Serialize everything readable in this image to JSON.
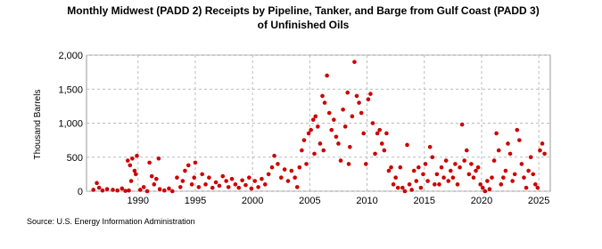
{
  "chart_data": {
    "type": "scatter",
    "title": [
      "Monthly Midwest (PADD 2) Receipts by Pipeline, Tanker, and Barge from Gulf Coast (PADD 3)",
      "of Unfinished Oils"
    ],
    "y_label": "Thousand Barrels",
    "source": "Source: U.S. Energy Information Administration",
    "color": "#cc0000",
    "grid": true,
    "xlim": [
      1985.5,
      2026
    ],
    "xticks": [
      1990,
      1995,
      2000,
      2005,
      2010,
      2015,
      2020,
      2025
    ],
    "ylim": [
      0,
      2000
    ],
    "yticks": [
      0,
      500,
      {
        "value": 1000,
        "label": "1,000"
      },
      {
        "value": 1500,
        "label": "1,500"
      },
      {
        "value": 2000,
        "label": "2,000"
      }
    ],
    "x": [
      1986.1,
      1986.4,
      1986.6,
      1986.9,
      1987.3,
      1987.8,
      1988.2,
      1988.6,
      1988.9,
      1989.1,
      1989.2,
      1989.3,
      1989.4,
      1989.5,
      1989.7,
      1989.8,
      1989.9,
      1990.2,
      1990.5,
      1990.8,
      1991.0,
      1991.2,
      1991.4,
      1991.6,
      1991.8,
      1991.9,
      1992.3,
      1992.7,
      1993.0,
      1993.4,
      1993.7,
      1993.9,
      1994.1,
      1994.4,
      1994.7,
      1994.9,
      1995.0,
      1995.3,
      1995.6,
      1995.9,
      1996.2,
      1996.5,
      1996.8,
      1997.1,
      1997.4,
      1997.7,
      1997.9,
      1998.2,
      1998.5,
      1998.8,
      1999.1,
      1999.4,
      1999.7,
      1999.9,
      2000.2,
      2000.5,
      2000.8,
      2001.1,
      2001.4,
      2001.7,
      2001.9,
      2002.2,
      2002.5,
      2002.8,
      2003.1,
      2003.4,
      2003.7,
      2003.9,
      2004.1,
      2004.3,
      2004.5,
      2004.7,
      2004.9,
      2005.1,
      2005.3,
      2005.4,
      2005.5,
      2005.7,
      2005.9,
      2006.1,
      2006.2,
      2006.3,
      2006.5,
      2006.7,
      2006.9,
      2007.1,
      2007.3,
      2007.5,
      2007.7,
      2007.9,
      2008.1,
      2008.3,
      2008.4,
      2008.5,
      2008.7,
      2008.9,
      2009.1,
      2009.3,
      2009.5,
      2009.7,
      2009.9,
      2010.1,
      2010.3,
      2010.5,
      2010.7,
      2010.9,
      2011.1,
      2011.3,
      2011.5,
      2011.7,
      2011.9,
      2012.1,
      2012.3,
      2012.5,
      2012.7,
      2012.9,
      2013.1,
      2013.3,
      2013.5,
      2013.7,
      2013.9,
      2014.1,
      2014.3,
      2014.5,
      2014.7,
      2014.9,
      2015.1,
      2015.3,
      2015.5,
      2015.7,
      2015.9,
      2016.1,
      2016.3,
      2016.5,
      2016.7,
      2016.9,
      2017.1,
      2017.3,
      2017.5,
      2017.7,
      2017.9,
      2018.1,
      2018.3,
      2018.5,
      2018.7,
      2018.9,
      2019.1,
      2019.3,
      2019.5,
      2019.7,
      2019.9,
      2020.1,
      2020.3,
      2020.5,
      2020.7,
      2020.9,
      2021.1,
      2021.3,
      2021.5,
      2021.7,
      2021.9,
      2022.1,
      2022.3,
      2022.5,
      2022.7,
      2022.9,
      2023.1,
      2023.3,
      2023.5,
      2023.7,
      2023.9,
      2024.1,
      2024.3,
      2024.5,
      2024.7,
      2024.9,
      2025.1,
      2025.3,
      2025.5
    ],
    "values": [
      20,
      120,
      50,
      10,
      30,
      20,
      10,
      40,
      5,
      450,
      10,
      380,
      150,
      480,
      300,
      250,
      520,
      20,
      60,
      0,
      420,
      220,
      100,
      180,
      480,
      30,
      10,
      40,
      0,
      200,
      60,
      150,
      300,
      380,
      100,
      200,
      420,
      60,
      250,
      100,
      200,
      50,
      130,
      80,
      220,
      150,
      60,
      180,
      100,
      50,
      160,
      90,
      200,
      40,
      150,
      60,
      180,
      100,
      250,
      350,
      520,
      400,
      200,
      320,
      150,
      300,
      200,
      60,
      350,
      600,
      750,
      400,
      850,
      900,
      1050,
      550,
      1100,
      950,
      700,
      1400,
      600,
      1300,
      1700,
      1150,
      900,
      1050,
      800,
      700,
      450,
      1200,
      950,
      1450,
      400,
      650,
      1100,
      1900,
      1400,
      1300,
      1150,
      850,
      400,
      1350,
      1430,
      1000,
      550,
      850,
      900,
      700,
      600,
      850,
      300,
      350,
      100,
      200,
      50,
      350,
      50,
      0,
      680,
      100,
      20,
      300,
      150,
      350,
      50,
      250,
      400,
      150,
      650,
      500,
      100,
      250,
      100,
      350,
      200,
      450,
      150,
      300,
      200,
      400,
      100,
      350,
      980,
      450,
      600,
      250,
      400,
      200,
      300,
      350,
      100,
      50,
      0,
      150,
      30,
      200,
      450,
      850,
      600,
      100,
      200,
      300,
      700,
      550,
      150,
      250,
      900,
      750,
      400,
      200,
      50,
      300,
      500,
      250,
      100,
      50,
      600,
      700,
      550
    ]
  }
}
